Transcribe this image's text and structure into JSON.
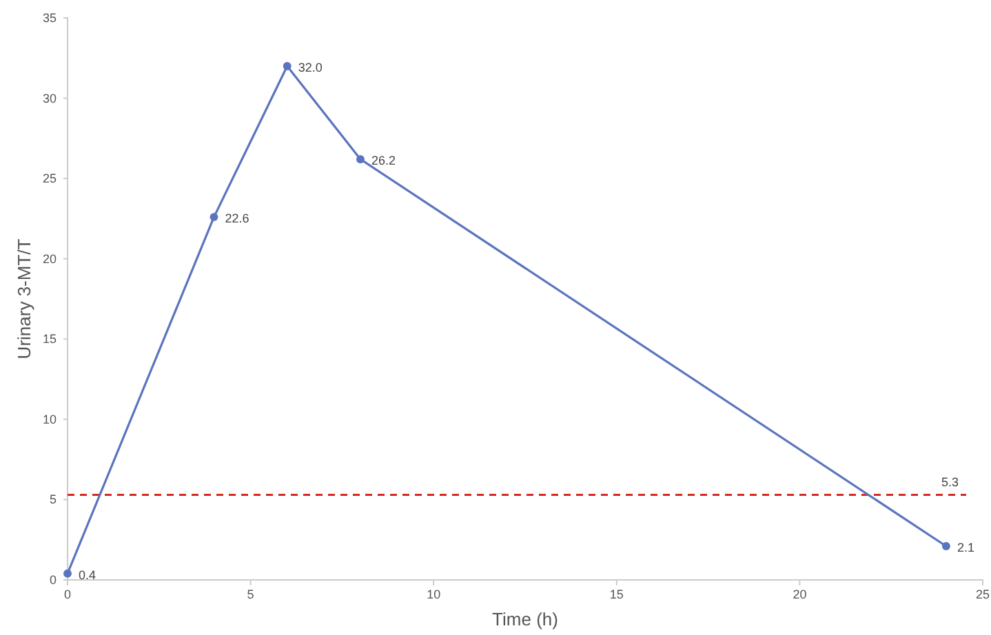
{
  "chart_data": {
    "type": "line",
    "xlabel": "Time (h)",
    "ylabel": "Urinary 3-MT/T",
    "x": [
      0,
      4,
      6,
      8,
      24
    ],
    "series": [
      {
        "color": "#5b74bf",
        "values": [
          0.4,
          22.6,
          32.0,
          26.2,
          2.1
        ],
        "value_labels": [
          "0.4",
          "22.6",
          "32.0",
          "26.2",
          "2.1"
        ]
      }
    ],
    "xlim": [
      0,
      25
    ],
    "xticks": [
      0,
      5,
      10,
      15,
      20,
      25
    ],
    "ylim": [
      0,
      35
    ],
    "yticks": [
      0,
      5,
      10,
      15,
      20,
      25,
      30,
      35
    ],
    "grid": false,
    "marker": "circle",
    "line_style": "solid",
    "ref_lines": [
      {
        "axis": "y",
        "value": 5.3,
        "label": "5.3",
        "color": "#d42a20",
        "line_style": "dashed"
      }
    ]
  }
}
